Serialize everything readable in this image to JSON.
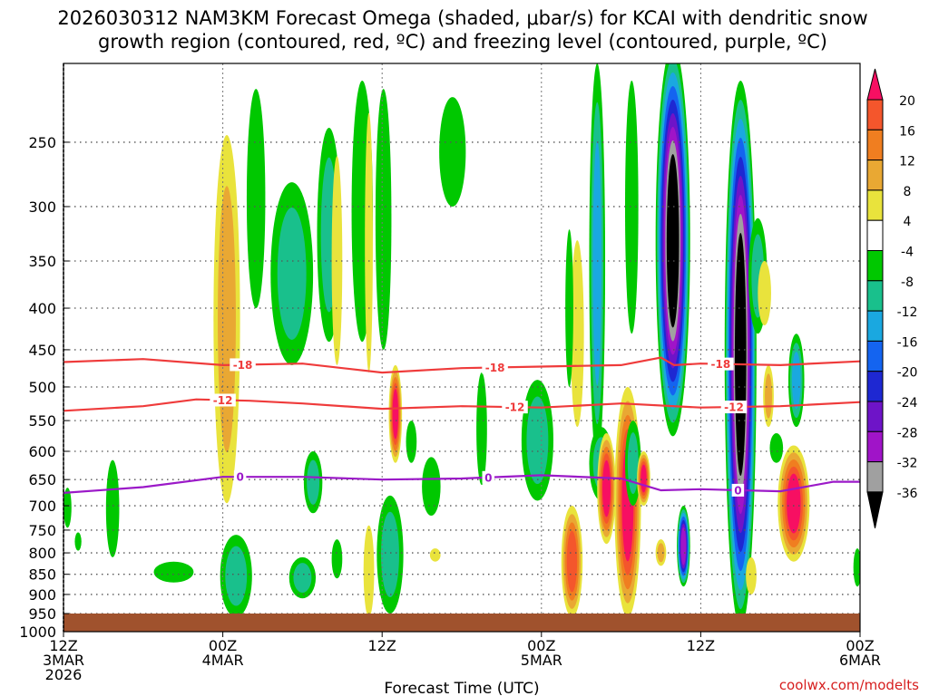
{
  "chart_data": {
    "type": "heatmap",
    "title_line1": "2026030312 NAM3KM Forecast Omega (shaded, μbar/s) for KCAI with dendritic snow",
    "title_line2": "growth region (contoured, red, ºC) and freezing level (contoured, purple, ºC)",
    "xlabel": "Forecast Time (UTC)",
    "credit": "coolwx.com/modelts",
    "xlim": [
      0,
      60
    ],
    "ylim": [
      1000,
      200
    ],
    "x_ticks": [
      {
        "x": 0,
        "l1": "12Z",
        "l2": "3MAR",
        "l3": "2026"
      },
      {
        "x": 12,
        "l1": "00Z",
        "l2": "4MAR",
        "l3": ""
      },
      {
        "x": 24,
        "l1": "12Z",
        "l2": "",
        "l3": ""
      },
      {
        "x": 36,
        "l1": "00Z",
        "l2": "5MAR",
        "l3": ""
      },
      {
        "x": 48,
        "l1": "12Z",
        "l2": "",
        "l3": ""
      },
      {
        "x": 60,
        "l1": "00Z",
        "l2": "6MAR",
        "l3": ""
      }
    ],
    "y_ticks": [
      250,
      300,
      350,
      400,
      450,
      500,
      550,
      600,
      650,
      700,
      750,
      800,
      850,
      900,
      950,
      1000
    ],
    "colorbar": {
      "labels": [
        "20",
        "16",
        "12",
        "8",
        "4",
        "-4",
        "-8",
        "-12",
        "-16",
        "-20",
        "-24",
        "-28",
        "-32",
        "-36"
      ],
      "colors": [
        "#f70f62",
        "#f4562c",
        "#f07e20",
        "#e9a833",
        "#e9e33c",
        "#ffffff",
        "#00c800",
        "#19c08c",
        "#1aa8e0",
        "#1464f0",
        "#1e28d2",
        "#6e14c8",
        "#a014c8",
        "#a0a0a0",
        "#000000"
      ]
    },
    "terrain_color": "#a0522d",
    "contours": [
      {
        "name": "-18",
        "color": "#ef3b3b",
        "points": [
          [
            0,
            466
          ],
          [
            6,
            462
          ],
          [
            12,
            470
          ],
          [
            18,
            468
          ],
          [
            24,
            480
          ],
          [
            30,
            474
          ],
          [
            36,
            472
          ],
          [
            42,
            470
          ],
          [
            45,
            460
          ],
          [
            46,
            470
          ],
          [
            48,
            468
          ],
          [
            54,
            470
          ],
          [
            60,
            465
          ]
        ],
        "labels": [
          {
            "x": 13.5,
            "text": "-18"
          },
          {
            "x": 32.5,
            "text": "-18"
          },
          {
            "x": 49.5,
            "text": "-18"
          }
        ]
      },
      {
        "name": "-12",
        "color": "#ef3b3b",
        "points": [
          [
            0,
            535
          ],
          [
            6,
            528
          ],
          [
            10,
            518
          ],
          [
            14,
            520
          ],
          [
            18,
            524
          ],
          [
            24,
            532
          ],
          [
            30,
            528
          ],
          [
            36,
            530
          ],
          [
            42,
            524
          ],
          [
            48,
            530
          ],
          [
            54,
            528
          ],
          [
            60,
            522
          ]
        ],
        "labels": [
          {
            "x": 12,
            "text": "-12"
          },
          {
            "x": 34,
            "text": "-12"
          },
          {
            "x": 50.5,
            "text": "-12"
          }
        ]
      },
      {
        "name": "0",
        "color": "#9b19c8",
        "points": [
          [
            0,
            675
          ],
          [
            6,
            664
          ],
          [
            12,
            645
          ],
          [
            18,
            645
          ],
          [
            24,
            650
          ],
          [
            30,
            648
          ],
          [
            36,
            642
          ],
          [
            42,
            648
          ],
          [
            45,
            670
          ],
          [
            48,
            668
          ],
          [
            54,
            672
          ],
          [
            58,
            654
          ],
          [
            60,
            654
          ]
        ],
        "labels": [
          {
            "x": 13.3,
            "text": "0"
          },
          {
            "x": 32,
            "text": "0"
          },
          {
            "x": 50.8,
            "text": "0"
          }
        ]
      }
    ],
    "blobs": [
      {
        "x": 12.3,
        "p_top": 245,
        "p_bot": 695,
        "w": 1.0,
        "levels": [
          4,
          8
        ],
        "v": 7
      },
      {
        "x": 3.7,
        "p_top": 615,
        "p_bot": 810,
        "w": 0.5,
        "levels": [
          -4
        ],
        "v": -5
      },
      {
        "x": 0.3,
        "p_top": 665,
        "p_bot": 745,
        "w": 0.3,
        "levels": [
          -4
        ],
        "v": -5
      },
      {
        "x": 1.1,
        "p_top": 755,
        "p_bot": 795,
        "w": 0.25,
        "levels": [
          -4
        ],
        "v": -5
      },
      {
        "x": 8.3,
        "p_top": 820,
        "p_bot": 870,
        "w": 1.5,
        "levels": [
          -4
        ],
        "v": -5
      },
      {
        "x": 13.0,
        "p_top": 760,
        "p_bot": 960,
        "w": 1.2,
        "levels": [
          -4,
          -8
        ],
        "v": -9
      },
      {
        "x": 17.2,
        "p_top": 280,
        "p_bot": 470,
        "w": 1.6,
        "levels": [
          -4,
          -8
        ],
        "v": -8
      },
      {
        "x": 14.5,
        "p_top": 215,
        "p_bot": 400,
        "w": 0.7,
        "levels": [
          -4
        ],
        "v": -5
      },
      {
        "x": 20.0,
        "p_top": 240,
        "p_bot": 440,
        "w": 0.9,
        "levels": [
          -4,
          -8
        ],
        "v": -7
      },
      {
        "x": 20.6,
        "p_top": 260,
        "p_bot": 470,
        "w": 0.4,
        "levels": [
          4
        ],
        "v": 5
      },
      {
        "x": 18.8,
        "p_top": 600,
        "p_bot": 715,
        "w": 0.7,
        "levels": [
          -4,
          -8
        ],
        "v": -8
      },
      {
        "x": 18.0,
        "p_top": 810,
        "p_bot": 910,
        "w": 1.0,
        "levels": [
          -4,
          -8
        ],
        "v": -9
      },
      {
        "x": 22.5,
        "p_top": 210,
        "p_bot": 440,
        "w": 0.8,
        "levels": [
          -4
        ],
        "v": -5
      },
      {
        "x": 23.0,
        "p_top": 230,
        "p_bot": 480,
        "w": 0.3,
        "levels": [
          4
        ],
        "v": 5
      },
      {
        "x": 24.1,
        "p_top": 215,
        "p_bot": 450,
        "w": 0.6,
        "levels": [
          -4
        ],
        "v": -5
      },
      {
        "x": 25.0,
        "p_top": 470,
        "p_bot": 620,
        "w": 0.5,
        "levels": [
          4,
          8,
          12,
          16,
          20
        ],
        "v": 18
      },
      {
        "x": 24.6,
        "p_top": 680,
        "p_bot": 950,
        "w": 1.0,
        "levels": [
          -4,
          -8
        ],
        "v": -9
      },
      {
        "x": 27.7,
        "p_top": 610,
        "p_bot": 720,
        "w": 0.7,
        "levels": [
          -4
        ],
        "v": -5
      },
      {
        "x": 29.3,
        "p_top": 220,
        "p_bot": 300,
        "w": 1.0,
        "levels": [
          -4
        ],
        "v": -5
      },
      {
        "x": 23.0,
        "p_top": 740,
        "p_bot": 960,
        "w": 0.4,
        "levels": [
          4
        ],
        "v": 5
      },
      {
        "x": 20.6,
        "p_top": 770,
        "p_bot": 860,
        "w": 0.4,
        "levels": [
          -4
        ],
        "v": -5
      },
      {
        "x": 26.2,
        "p_top": 550,
        "p_bot": 620,
        "w": 0.4,
        "levels": [
          -4
        ],
        "v": -5
      },
      {
        "x": 28.0,
        "p_top": 790,
        "p_bot": 820,
        "w": 0.4,
        "levels": [
          4
        ],
        "v": 5
      },
      {
        "x": 31.5,
        "p_top": 480,
        "p_bot": 660,
        "w": 0.4,
        "levels": [
          -4
        ],
        "v": -5
      },
      {
        "x": 35.7,
        "p_top": 490,
        "p_bot": 690,
        "w": 1.2,
        "levels": [
          -4,
          -8
        ],
        "v": -7
      },
      {
        "x": 38.7,
        "p_top": 330,
        "p_bot": 560,
        "w": 0.5,
        "levels": [
          4
        ],
        "v": 5
      },
      {
        "x": 38.1,
        "p_top": 320,
        "p_bot": 500,
        "w": 0.3,
        "levels": [
          -4
        ],
        "v": -5
      },
      {
        "x": 38.3,
        "p_top": 700,
        "p_bot": 960,
        "w": 0.8,
        "levels": [
          4,
          8,
          12,
          16
        ],
        "v": 14
      },
      {
        "x": 40.2,
        "p_top": 200,
        "p_bot": 620,
        "w": 0.6,
        "levels": [
          -4,
          -8,
          -12
        ],
        "v": -12
      },
      {
        "x": 40.5,
        "p_top": 560,
        "p_bot": 690,
        "w": 0.9,
        "levels": [
          -4,
          -8
        ],
        "v": -9
      },
      {
        "x": 40.9,
        "p_top": 570,
        "p_bot": 780,
        "w": 0.7,
        "levels": [
          4,
          8,
          12,
          16,
          20
        ],
        "v": 18
      },
      {
        "x": 42.8,
        "p_top": 210,
        "p_bot": 430,
        "w": 0.5,
        "levels": [
          -4
        ],
        "v": -5
      },
      {
        "x": 42.5,
        "p_top": 500,
        "p_bot": 960,
        "w": 1.0,
        "levels": [
          4,
          8,
          12,
          16,
          20
        ],
        "v": 22
      },
      {
        "x": 42.9,
        "p_top": 550,
        "p_bot": 700,
        "w": 0.6,
        "levels": [
          -4,
          -8
        ],
        "v": -10
      },
      {
        "x": 43.7,
        "p_top": 600,
        "p_bot": 700,
        "w": 0.5,
        "levels": [
          4,
          8,
          12,
          16,
          20
        ],
        "v": 20
      },
      {
        "x": 45.9,
        "p_top": 190,
        "p_bot": 575,
        "w": 1.3,
        "levels": [
          -4,
          -8,
          -12,
          -16,
          -20,
          -24,
          -28,
          -32,
          -36
        ],
        "v": -40
      },
      {
        "x": 46.7,
        "p_top": 700,
        "p_bot": 880,
        "w": 0.5,
        "levels": [
          -4,
          -8,
          -12,
          -16,
          -20,
          -24,
          -28
        ],
        "v": -30
      },
      {
        "x": 45.0,
        "p_top": 770,
        "p_bot": 830,
        "w": 0.4,
        "levels": [
          4,
          8
        ],
        "v": 9
      },
      {
        "x": 51.0,
        "p_top": 210,
        "p_bot": 990,
        "w": 1.2,
        "levels": [
          -4,
          -8,
          -12,
          -16,
          -20,
          -24,
          -28,
          -32,
          -36
        ],
        "v": -40
      },
      {
        "x": 52.3,
        "p_top": 310,
        "p_bot": 430,
        "w": 0.7,
        "levels": [
          -4,
          -8
        ],
        "v": -8
      },
      {
        "x": 52.8,
        "p_top": 350,
        "p_bot": 420,
        "w": 0.5,
        "levels": [
          4
        ],
        "v": 5
      },
      {
        "x": 53.1,
        "p_top": 470,
        "p_bot": 560,
        "w": 0.4,
        "levels": [
          4,
          8
        ],
        "v": 9
      },
      {
        "x": 51.8,
        "p_top": 810,
        "p_bot": 900,
        "w": 0.4,
        "levels": [
          4
        ],
        "v": 5
      },
      {
        "x": 55.2,
        "p_top": 430,
        "p_bot": 560,
        "w": 0.6,
        "levels": [
          -4,
          -8,
          -12
        ],
        "v": -12
      },
      {
        "x": 55.0,
        "p_top": 590,
        "p_bot": 820,
        "w": 1.2,
        "levels": [
          4,
          8,
          12,
          16,
          20
        ],
        "v": 20
      },
      {
        "x": 53.7,
        "p_top": 570,
        "p_bot": 620,
        "w": 0.5,
        "levels": [
          -4
        ],
        "v": -5
      },
      {
        "x": 59.8,
        "p_top": 790,
        "p_bot": 880,
        "w": 0.3,
        "levels": [
          -4
        ],
        "v": -5
      }
    ]
  }
}
